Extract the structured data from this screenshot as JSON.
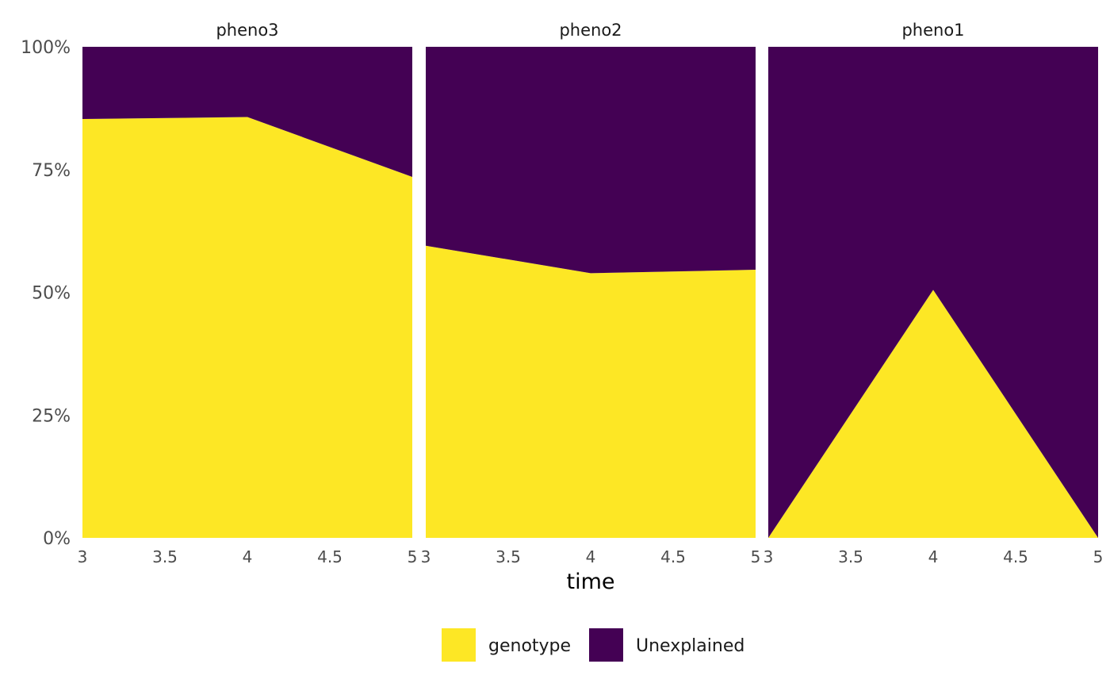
{
  "chart_data": {
    "type": "area",
    "stacked": "percent",
    "xlabel": "time",
    "ylabel": "",
    "xlim": [
      3,
      5
    ],
    "ylim": [
      0,
      1
    ],
    "x_ticks": [
      "3",
      "3.5",
      "4",
      "4.5",
      "5"
    ],
    "y_ticks": [
      "0%",
      "25%",
      "50%",
      "75%",
      "100%"
    ],
    "legend_position": "bottom",
    "colors": {
      "genotype": "#FDE725",
      "Unexplained": "#440154"
    },
    "legend": [
      {
        "name": "genotype",
        "color": "#FDE725"
      },
      {
        "name": "Unexplained",
        "color": "#440154"
      }
    ],
    "panels": [
      {
        "title": "pheno3",
        "x": [
          3,
          4,
          5
        ],
        "series": [
          {
            "name": "genotype",
            "values": [
              0.853,
              0.857,
              0.735
            ]
          },
          {
            "name": "Unexplained",
            "values": [
              0.147,
              0.143,
              0.265
            ]
          }
        ]
      },
      {
        "title": "pheno2",
        "x": [
          3,
          4,
          5
        ],
        "series": [
          {
            "name": "genotype",
            "values": [
              0.595,
              0.539,
              0.546
            ]
          },
          {
            "name": "Unexplained",
            "values": [
              0.405,
              0.461,
              0.454
            ]
          }
        ]
      },
      {
        "title": "pheno1",
        "x": [
          3,
          4,
          5
        ],
        "series": [
          {
            "name": "genotype",
            "values": [
              0.0,
              0.505,
              0.0
            ]
          },
          {
            "name": "Unexplained",
            "values": [
              1.0,
              0.495,
              1.0
            ]
          }
        ]
      }
    ]
  }
}
